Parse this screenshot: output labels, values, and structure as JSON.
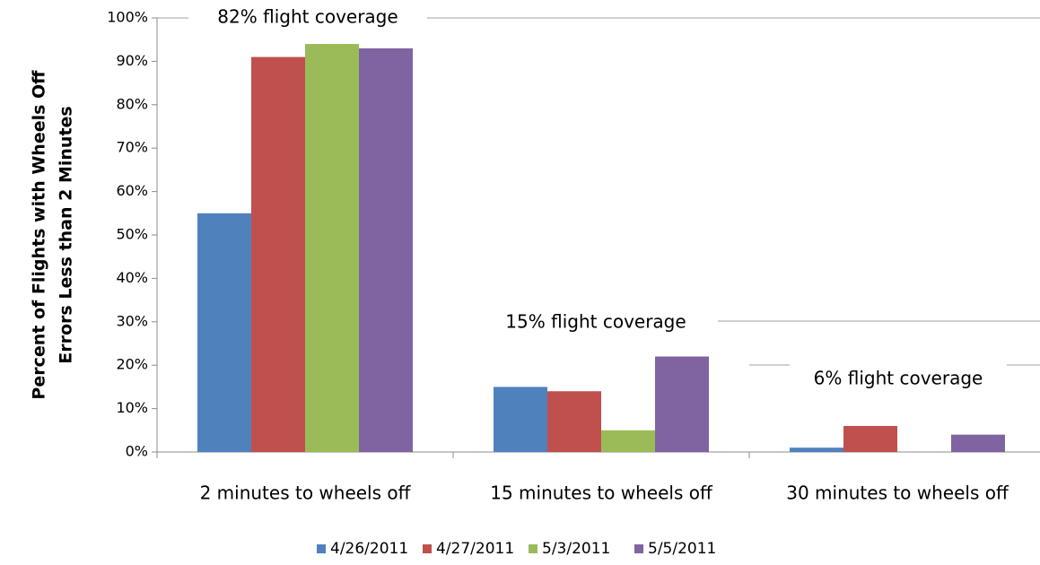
{
  "chart_data": {
    "type": "bar",
    "y_label": [
      "Percent of Flights with Wheels Off",
      "Errors Less than 2 Minutes"
    ],
    "categories": [
      "2 minutes to wheels off",
      "15 minutes to wheels off",
      "30 minutes to wheels off"
    ],
    "series": [
      {
        "name": "4/26/2011",
        "color": "#4f81bd",
        "values": [
          55,
          15,
          1
        ]
      },
      {
        "name": "4/27/2011",
        "color": "#c0504d",
        "values": [
          91,
          14,
          6
        ]
      },
      {
        "name": "5/3/2011",
        "color": "#9bbb59",
        "values": [
          94,
          5,
          0
        ]
      },
      {
        "name": "5/5/2011",
        "color": "#8064a2",
        "values": [
          93,
          22,
          4
        ]
      }
    ],
    "annotations": [
      "82% flight coverage",
      "15% flight coverage",
      "6% flight coverage"
    ],
    "ylim": [
      0,
      100
    ],
    "yticks": [
      {
        "value": 0,
        "label": "0%"
      },
      {
        "value": 10,
        "label": "10%"
      },
      {
        "value": 20,
        "label": "20%"
      },
      {
        "value": 30,
        "label": "30%"
      },
      {
        "value": 40,
        "label": "40%"
      },
      {
        "value": 50,
        "label": "50%"
      },
      {
        "value": 60,
        "label": "60%"
      },
      {
        "value": 70,
        "label": "70%"
      },
      {
        "value": 80,
        "label": "80%"
      },
      {
        "value": 90,
        "label": "90%"
      },
      {
        "value": 100,
        "label": "100%"
      }
    ],
    "grid": false,
    "legend": "bottom"
  }
}
